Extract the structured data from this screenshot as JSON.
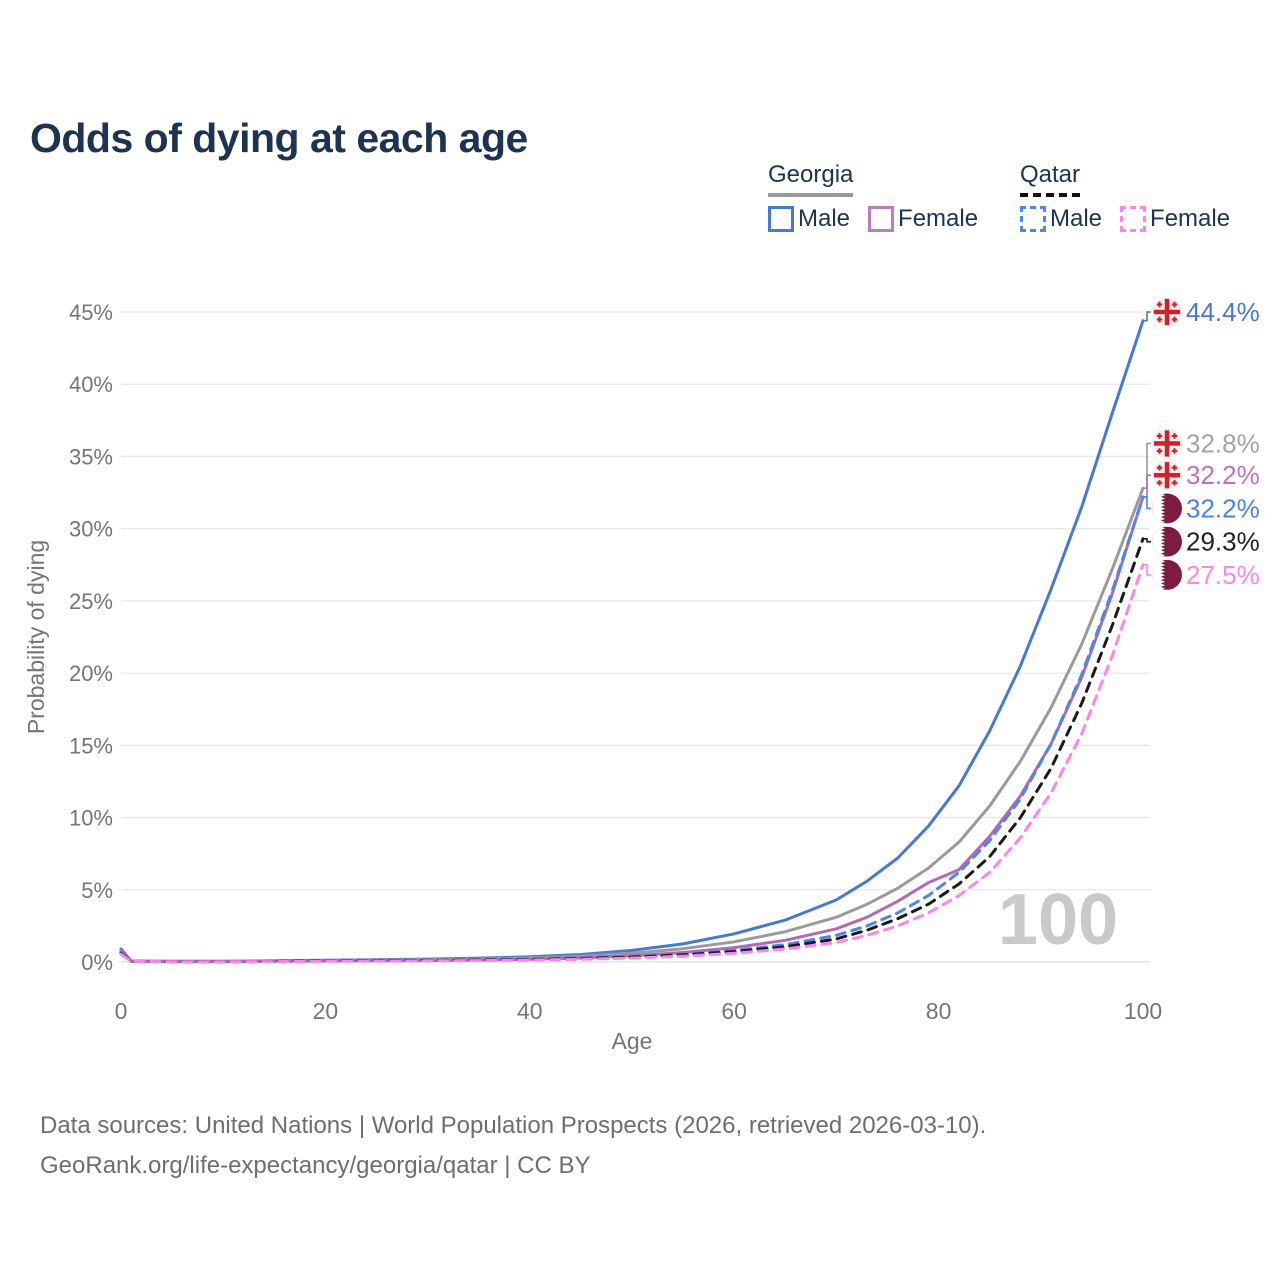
{
  "title": "Odds of dying at each age",
  "legend": {
    "georgia": {
      "label": "Georgia",
      "male": "Male",
      "female": "Female"
    },
    "qatar": {
      "label": "Qatar",
      "male": "Male",
      "female": "Female"
    }
  },
  "watermark": "100",
  "footer": {
    "line1": "Data sources: United Nations | World Population Prospects (2026, retrieved 2026-03-10).",
    "line2": "GeoRank.org/life-expectancy/georgia/qatar | CC BY"
  },
  "colors": {
    "title_navy": "#1c3352",
    "tick_gray": "#757575",
    "grid_gray": "#e7e7e7",
    "watermark_gray": "#c9c9c9",
    "georgia_underline": "#9a9a9a",
    "qatar_underline": "#111111",
    "georgia_flag_red": "#d0202d",
    "qatar_flag_maroon": "#7d1c41"
  },
  "chart_data": {
    "type": "line",
    "title": "Odds of dying at each age",
    "xlabel": "Age",
    "ylabel": "Probability of dying",
    "xlim": [
      0,
      100
    ],
    "ylim": [
      0,
      45
    ],
    "x_ticks": [
      0,
      20,
      40,
      60,
      80,
      100
    ],
    "y_ticks": [
      0,
      5,
      10,
      15,
      20,
      25,
      30,
      35,
      40,
      45
    ],
    "y_tick_suffix": "%",
    "grid": true,
    "legend_position": "top-right",
    "x": [
      0,
      1,
      5,
      10,
      15,
      20,
      25,
      30,
      35,
      40,
      45,
      50,
      55,
      60,
      65,
      70,
      73,
      76,
      79,
      82,
      85,
      88,
      91,
      94,
      97,
      100
    ],
    "series": [
      {
        "name": "Georgia male",
        "slug": "georgia-male",
        "flag": "georgia",
        "color": "#4878cf",
        "dash": null,
        "values": [
          0.9,
          0.07,
          0.05,
          0.05,
          0.08,
          0.12,
          0.16,
          0.2,
          0.27,
          0.36,
          0.52,
          0.8,
          1.25,
          1.95,
          2.9,
          4.3,
          5.6,
          7.2,
          9.4,
          12.2,
          16.0,
          20.5,
          25.8,
          31.5,
          38.0,
          44.4
        ],
        "end_label": "44.4%",
        "label_color": "#4878cf",
        "label_at": 45.0
      },
      {
        "name": "Georgia both sexes",
        "slug": "georgia-total",
        "flag": "georgia",
        "color": "#9a9a9a",
        "dash": null,
        "values": [
          0.75,
          0.06,
          0.04,
          0.04,
          0.06,
          0.09,
          0.12,
          0.15,
          0.2,
          0.28,
          0.4,
          0.6,
          0.92,
          1.4,
          2.1,
          3.1,
          4.0,
          5.1,
          6.5,
          8.3,
          10.8,
          13.9,
          17.6,
          22.0,
          27.2,
          32.8
        ],
        "end_label": "32.8%",
        "label_color": "#a3a3a3",
        "label_at": 35.9
      },
      {
        "name": "Georgia female",
        "slug": "georgia-female",
        "flag": "georgia",
        "color": "#b36ab3",
        "dash": null,
        "values": [
          0.8,
          0.05,
          0.03,
          0.03,
          0.05,
          0.07,
          0.08,
          0.1,
          0.14,
          0.19,
          0.28,
          0.43,
          0.66,
          1.0,
          1.5,
          2.3,
          3.1,
          4.2,
          5.5,
          6.4,
          8.7,
          11.5,
          15.1,
          19.7,
          25.5,
          32.2
        ],
        "end_label": "32.2%",
        "label_color": "#bb73c0",
        "label_at": 33.7
      },
      {
        "name": "Qatar male",
        "slug": "qatar-male",
        "flag": "qatar",
        "color": "#4e86ea",
        "dash": "9 7",
        "values": [
          0.65,
          0.05,
          0.03,
          0.03,
          0.05,
          0.08,
          0.1,
          0.12,
          0.15,
          0.2,
          0.27,
          0.38,
          0.55,
          0.8,
          1.2,
          1.85,
          2.5,
          3.4,
          4.6,
          6.2,
          8.4,
          11.3,
          15.1,
          19.9,
          25.7,
          32.2
        ],
        "end_label": "32.2%",
        "label_color": "#4b82e8",
        "label_at": 31.4
      },
      {
        "name": "Qatar both sexes",
        "slug": "qatar-total",
        "flag": "qatar",
        "color": "#1a1a1a",
        "dash": "9 7",
        "values": [
          0.6,
          0.05,
          0.03,
          0.03,
          0.04,
          0.07,
          0.09,
          0.11,
          0.13,
          0.17,
          0.24,
          0.34,
          0.49,
          0.72,
          1.05,
          1.6,
          2.2,
          3.0,
          4.0,
          5.4,
          7.3,
          10.0,
          13.4,
          17.9,
          23.3,
          29.3
        ],
        "end_label": "29.3%",
        "label_color": "#222222",
        "label_at": 29.1
      },
      {
        "name": "Qatar female",
        "slug": "qatar-female",
        "flag": "qatar",
        "color": "#ff85ec",
        "dash": "9 7",
        "values": [
          0.55,
          0.04,
          0.02,
          0.02,
          0.03,
          0.05,
          0.06,
          0.08,
          0.1,
          0.13,
          0.19,
          0.27,
          0.4,
          0.6,
          0.9,
          1.35,
          1.85,
          2.5,
          3.4,
          4.6,
          6.2,
          8.6,
          11.7,
          15.8,
          21.2,
          27.5
        ],
        "end_label": "27.5%",
        "label_color": "#ff85ec",
        "label_at": 26.8
      }
    ]
  }
}
